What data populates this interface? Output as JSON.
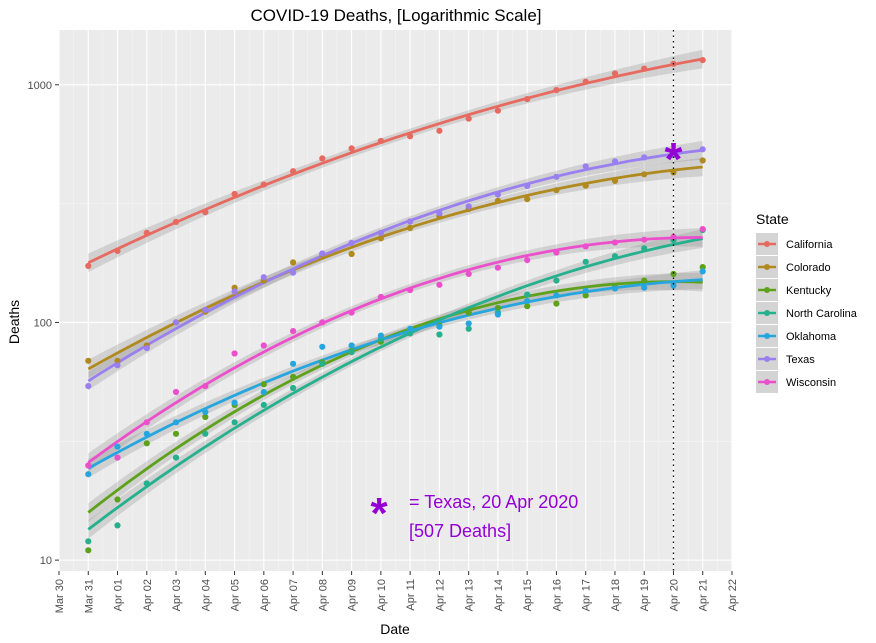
{
  "chart_data": {
    "type": "line",
    "title": "COVID-19 Deaths, [Logarithmic Scale]",
    "xlabel": "Date",
    "ylabel": "Deaths",
    "y_scale": "log10",
    "ylim": [
      9,
      1700
    ],
    "xlim": [
      "2020-03-30",
      "2020-04-22"
    ],
    "x_ticks": [
      "Mar 30",
      "Mar 31",
      "Apr 01",
      "Apr 02",
      "Apr 03",
      "Apr 04",
      "Apr 05",
      "Apr 06",
      "Apr 07",
      "Apr 08",
      "Apr 09",
      "Apr 10",
      "Apr 11",
      "Apr 12",
      "Apr 13",
      "Apr 14",
      "Apr 15",
      "Apr 16",
      "Apr 17",
      "Apr 18",
      "Apr 19",
      "Apr 20",
      "Apr 21",
      "Apr 22"
    ],
    "y_ticks": [
      10,
      100,
      1000
    ],
    "grid": true,
    "legend": {
      "title": "State",
      "position": "right"
    },
    "x": [
      "2020-03-31",
      "2020-04-01",
      "2020-04-02",
      "2020-04-03",
      "2020-04-04",
      "2020-04-05",
      "2020-04-06",
      "2020-04-07",
      "2020-04-08",
      "2020-04-09",
      "2020-04-10",
      "2020-04-11",
      "2020-04-12",
      "2020-04-13",
      "2020-04-14",
      "2020-04-15",
      "2020-04-16",
      "2020-04-17",
      "2020-04-18",
      "2020-04-19",
      "2020-04-20",
      "2020-04-21"
    ],
    "series": [
      {
        "name": "California",
        "color": "#E76A60",
        "values": [
          173,
          200,
          238,
          265,
          291,
          347,
          380,
          433,
          490,
          540,
          580,
          607,
          640,
          720,
          778,
          870,
          950,
          1030,
          1115,
          1170,
          1225,
          1270
        ]
      },
      {
        "name": "Colorado",
        "color": "#B08A1E",
        "values": [
          69,
          69,
          80,
          100,
          111,
          140,
          150,
          179,
          193,
          194,
          226,
          250,
          280,
          300,
          325,
          330,
          360,
          376,
          394,
          420,
          428,
          480
        ]
      },
      {
        "name": "Kentucky",
        "color": "#5DA21A",
        "values": [
          11,
          18,
          31,
          34,
          40,
          45,
          55,
          59,
          68,
          76,
          83,
          90,
          97,
          110,
          115,
          117,
          120,
          130,
          142,
          150,
          160,
          171
        ]
      },
      {
        "name": "North Carolina",
        "color": "#25B08E",
        "values": [
          12,
          14,
          21,
          27,
          34,
          38,
          45,
          53,
          67,
          75,
          85,
          90,
          89,
          94,
          110,
          131,
          150,
          180,
          190,
          205,
          222,
          245
        ]
      },
      {
        "name": "Oklahoma",
        "color": "#26A6DE",
        "values": [
          23,
          30,
          34,
          38,
          42,
          46,
          51,
          67,
          79,
          80,
          88,
          94,
          96,
          99,
          108,
          123,
          130,
          136,
          139,
          140,
          143,
          164
        ]
      },
      {
        "name": "Texas",
        "color": "#9A7FF0",
        "values": [
          54,
          66,
          78,
          100,
          113,
          135,
          155,
          162,
          195,
          216,
          238,
          266,
          288,
          308,
          345,
          375,
          410,
          454,
          476,
          495,
          507,
          535
        ]
      },
      {
        "name": "Wisconsin",
        "color": "#EC4FCB",
        "values": [
          25,
          27,
          38,
          51,
          54,
          74,
          80,
          92,
          100,
          110,
          128,
          137,
          144,
          160,
          170,
          183,
          197,
          209,
          217,
          223,
          229,
          247
        ]
      }
    ],
    "reference_line": {
      "x": "2020-04-20",
      "style": "dotted"
    },
    "highlight": {
      "x": "2020-04-20",
      "y": 507,
      "series": "Texas",
      "marker": "*",
      "color": "#9400D3"
    },
    "annotation": {
      "line1": "= Texas, 20 Apr 2020",
      "line2": "[507 Deaths]",
      "color": "#9400D3"
    }
  }
}
